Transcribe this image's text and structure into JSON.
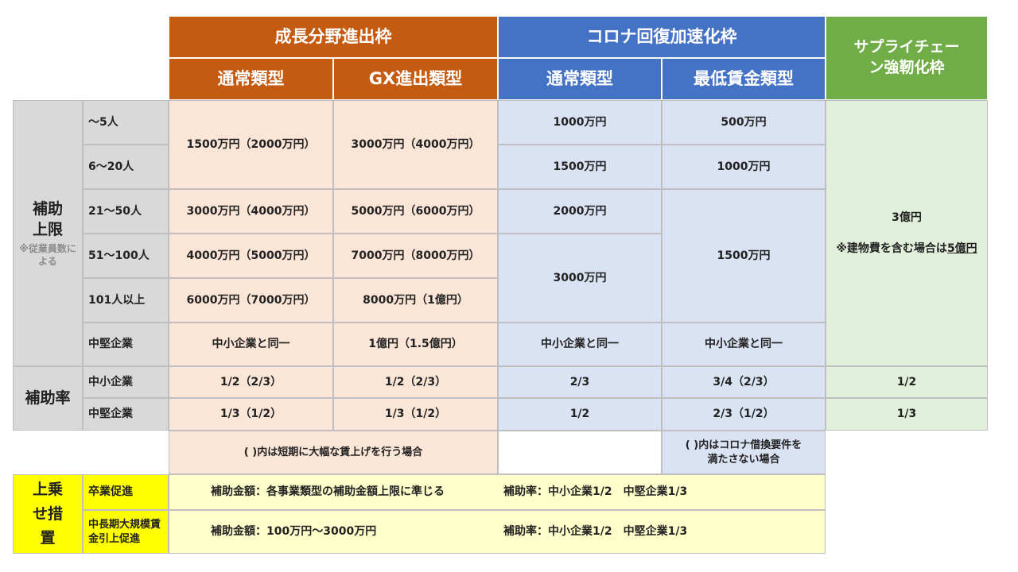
{
  "headers": {
    "growth": "成長分野進出枠",
    "covid": "コロナ回復加速化枠",
    "supply": "サプライチェーン強靭化枠",
    "growth_normal": "通常類型",
    "growth_gx": "GX進出類型",
    "covid_normal": "通常類型",
    "covid_minwage": "最低賃金類型"
  },
  "limit_section": {
    "title": "補助上限",
    "note": "※従業員数による",
    "rows": [
      "～5人",
      "6～20人",
      "21～50人",
      "51～100人",
      "101人以上",
      "中堅企業"
    ]
  },
  "growth_normal": {
    "r1": "1500万円（2000万円）",
    "r3": "3000万円（4000万円）",
    "r4": "4000万円（5000万円）",
    "r5": "6000万円（7000万円）",
    "r6": "中小企業と同一"
  },
  "growth_gx": {
    "r1": "3000万円（4000万円）",
    "r3": "5000万円（6000万円）",
    "r4": "7000万円（8000万円）",
    "r5": "8000万円（1億円）",
    "r6": "1億円（1.5億円）"
  },
  "covid_normal": {
    "r1": "1000万円",
    "r2": "1500万円",
    "r3": "2000万円",
    "r4": "3000万円",
    "r6": "中小企業と同一"
  },
  "covid_minwage": {
    "r1": "500万円",
    "r2": "1000万円",
    "r3": "1500万円",
    "r6": "中小企業と同一"
  },
  "supply": {
    "amount": "3億円",
    "note_prefix": "※建物費を含む場合は",
    "note_value": "5億円"
  },
  "rate_section": {
    "title": "補助率",
    "rows": [
      "中小企業",
      "中堅企業"
    ],
    "growth_normal": [
      "1/2（2/3）",
      "1/3（1/2）"
    ],
    "growth_gx": [
      "1/2（2/3）",
      "1/3（1/2）"
    ],
    "covid_normal": [
      "2/3",
      "1/2"
    ],
    "covid_minwage": [
      "3/4（2/3）",
      "2/3（1/2）"
    ],
    "supply": [
      "1/2",
      "1/3"
    ]
  },
  "notes": {
    "growth": "( )内は短期に大幅な賃上げを行う場合",
    "covid": "( )内はコロナ借換要件を\n満たさない場合"
  },
  "addon": {
    "title": "上乗せ措置",
    "rows": [
      {
        "label": "卒業促進",
        "amount": "補助金額：各事業類型の補助金額上限に準じる",
        "rate": "補助率：中小企業1/2　中堅企業1/3"
      },
      {
        "label": "中長期大規模賃金引上促進",
        "amount": "補助金額：100万円～3000万円",
        "rate": "補助率：中小企業1/2　中堅企業1/3"
      }
    ]
  }
}
